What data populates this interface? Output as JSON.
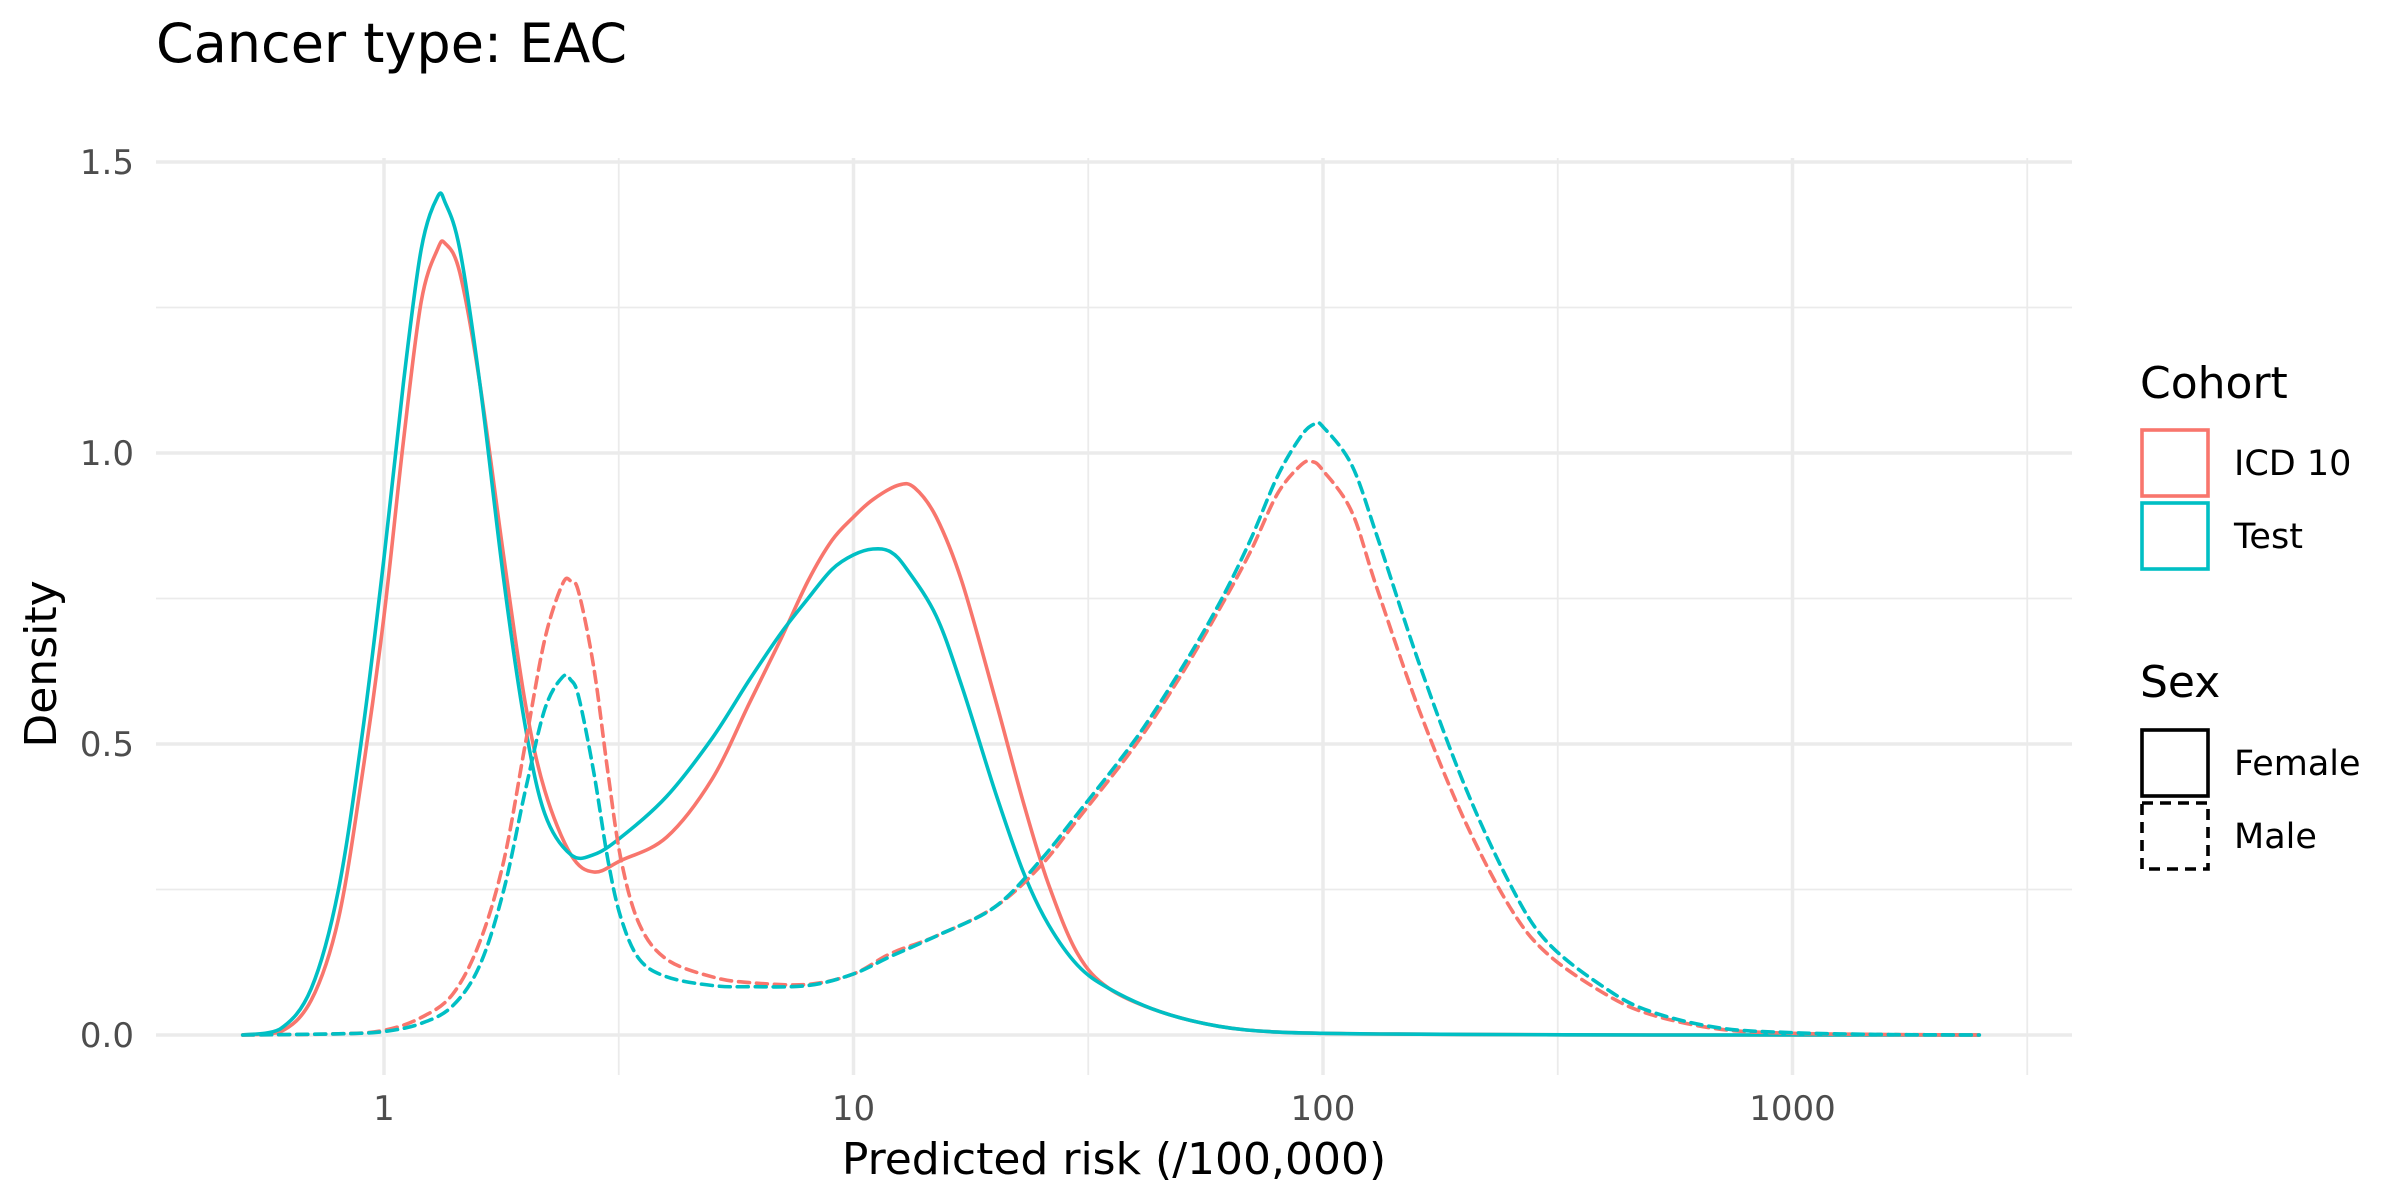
{
  "chart_data": {
    "type": "line",
    "title": "Cancer type: EAC",
    "subtitle": "",
    "xlabel": "Predicted risk (/100,000)",
    "ylabel": "Density",
    "x_scale": "log10",
    "xlim": [
      0.5,
      2500
    ],
    "ylim": [
      0,
      1.5
    ],
    "x_ticks": [
      {
        "value": 1,
        "label": "1"
      },
      {
        "value": 10,
        "label": "10"
      },
      {
        "value": 100,
        "label": "100"
      },
      {
        "value": 1000,
        "label": "1000"
      }
    ],
    "x_minor_ticks": [
      3.162,
      31.62,
      316.2,
      3162
    ],
    "y_ticks": [
      {
        "value": 0,
        "label": "0.0"
      },
      {
        "value": 0.5,
        "label": "0.5"
      },
      {
        "value": 1.0,
        "label": "1.0"
      },
      {
        "value": 1.5,
        "label": "1.5"
      }
    ],
    "y_minor_ticks": [
      0.25,
      0.75,
      1.25
    ],
    "grid": true,
    "legend_position": "right",
    "legends": [
      {
        "title": "Cohort",
        "entries": [
          {
            "label": "ICD 10",
            "color": "#F8766D",
            "dash": "solid"
          },
          {
            "label": "Test",
            "color": "#00BFC4",
            "dash": "solid"
          }
        ]
      },
      {
        "title": "Sex",
        "entries": [
          {
            "label": "Female",
            "color": "#000000",
            "dash": "solid"
          },
          {
            "label": "Male",
            "color": "#000000",
            "dash": "dashed"
          }
        ]
      }
    ],
    "series": [
      {
        "name": "ICD 10 / Female",
        "cohort": "ICD 10",
        "sex": "Female",
        "color": "#F8766D",
        "dash": "solid",
        "points": [
          [
            0.5,
            0
          ],
          [
            0.6,
            0.005
          ],
          [
            0.7,
            0.06
          ],
          [
            0.8,
            0.2
          ],
          [
            0.9,
            0.45
          ],
          [
            1.0,
            0.72
          ],
          [
            1.1,
            1.02
          ],
          [
            1.2,
            1.26
          ],
          [
            1.3,
            1.35
          ],
          [
            1.35,
            1.36
          ],
          [
            1.45,
            1.31
          ],
          [
            1.6,
            1.12
          ],
          [
            1.8,
            0.82
          ],
          [
            2.0,
            0.57
          ],
          [
            2.2,
            0.42
          ],
          [
            2.5,
            0.31
          ],
          [
            2.8,
            0.28
          ],
          [
            3.2,
            0.3
          ],
          [
            4.0,
            0.34
          ],
          [
            5.0,
            0.44
          ],
          [
            6.0,
            0.57
          ],
          [
            7.0,
            0.68
          ],
          [
            8.0,
            0.78
          ],
          [
            9.0,
            0.85
          ],
          [
            10,
            0.89
          ],
          [
            11,
            0.92
          ],
          [
            12.5,
            0.945
          ],
          [
            13.5,
            0.94
          ],
          [
            15,
            0.89
          ],
          [
            17,
            0.78
          ],
          [
            20,
            0.58
          ],
          [
            23,
            0.4
          ],
          [
            26,
            0.26
          ],
          [
            30,
            0.14
          ],
          [
            35,
            0.08
          ],
          [
            45,
            0.04
          ],
          [
            60,
            0.015
          ],
          [
            80,
            0.005
          ],
          [
            120,
            0.002
          ],
          [
            200,
            0.001
          ],
          [
            500,
            0.0
          ],
          [
            1000,
            0.0
          ],
          [
            2500,
            0.0
          ]
        ]
      },
      {
        "name": "Test / Female",
        "cohort": "Test",
        "sex": "Female",
        "color": "#00BFC4",
        "dash": "solid",
        "points": [
          [
            0.5,
            0
          ],
          [
            0.6,
            0.01
          ],
          [
            0.7,
            0.08
          ],
          [
            0.8,
            0.25
          ],
          [
            0.9,
            0.52
          ],
          [
            1.0,
            0.82
          ],
          [
            1.1,
            1.12
          ],
          [
            1.2,
            1.35
          ],
          [
            1.3,
            1.44
          ],
          [
            1.35,
            1.43
          ],
          [
            1.45,
            1.35
          ],
          [
            1.6,
            1.12
          ],
          [
            1.8,
            0.78
          ],
          [
            2.0,
            0.53
          ],
          [
            2.2,
            0.38
          ],
          [
            2.5,
            0.31
          ],
          [
            2.8,
            0.31
          ],
          [
            3.2,
            0.34
          ],
          [
            4.0,
            0.41
          ],
          [
            5.0,
            0.51
          ],
          [
            6.0,
            0.61
          ],
          [
            7.0,
            0.69
          ],
          [
            8.0,
            0.75
          ],
          [
            9.0,
            0.8
          ],
          [
            10,
            0.825
          ],
          [
            11,
            0.835
          ],
          [
            12,
            0.83
          ],
          [
            13,
            0.8
          ],
          [
            15,
            0.72
          ],
          [
            17,
            0.6
          ],
          [
            20,
            0.42
          ],
          [
            23,
            0.28
          ],
          [
            26,
            0.19
          ],
          [
            30,
            0.12
          ],
          [
            35,
            0.08
          ],
          [
            45,
            0.04
          ],
          [
            60,
            0.015
          ],
          [
            80,
            0.005
          ],
          [
            120,
            0.002
          ],
          [
            200,
            0.001
          ],
          [
            500,
            0.0
          ],
          [
            1000,
            0.0
          ],
          [
            2500,
            0.0
          ]
        ]
      },
      {
        "name": "ICD 10 / Male",
        "cohort": "ICD 10",
        "sex": "Male",
        "color": "#F8766D",
        "dash": "dashed",
        "points": [
          [
            0.5,
            0
          ],
          [
            0.8,
            0.002
          ],
          [
            1.0,
            0.008
          ],
          [
            1.2,
            0.03
          ],
          [
            1.4,
            0.07
          ],
          [
            1.6,
            0.16
          ],
          [
            1.8,
            0.3
          ],
          [
            2.0,
            0.5
          ],
          [
            2.2,
            0.68
          ],
          [
            2.4,
            0.775
          ],
          [
            2.5,
            0.78
          ],
          [
            2.6,
            0.76
          ],
          [
            2.8,
            0.63
          ],
          [
            3.0,
            0.45
          ],
          [
            3.2,
            0.3
          ],
          [
            3.5,
            0.19
          ],
          [
            4.0,
            0.13
          ],
          [
            5.0,
            0.1
          ],
          [
            6.0,
            0.09
          ],
          [
            8.0,
            0.087
          ],
          [
            10,
            0.105
          ],
          [
            12,
            0.14
          ],
          [
            15,
            0.17
          ],
          [
            20,
            0.22
          ],
          [
            25,
            0.29
          ],
          [
            30,
            0.37
          ],
          [
            40,
            0.5
          ],
          [
            50,
            0.62
          ],
          [
            60,
            0.73
          ],
          [
            70,
            0.83
          ],
          [
            80,
            0.93
          ],
          [
            90,
            0.98
          ],
          [
            95,
            0.985
          ],
          [
            100,
            0.97
          ],
          [
            115,
            0.9
          ],
          [
            130,
            0.77
          ],
          [
            160,
            0.56
          ],
          [
            200,
            0.37
          ],
          [
            250,
            0.22
          ],
          [
            300,
            0.14
          ],
          [
            400,
            0.07
          ],
          [
            500,
            0.035
          ],
          [
            700,
            0.01
          ],
          [
            1000,
            0.003
          ],
          [
            1500,
            0.001
          ],
          [
            2500,
            0.0
          ]
        ]
      },
      {
        "name": "Test / Male",
        "cohort": "Test",
        "sex": "Male",
        "color": "#00BFC4",
        "dash": "dashed",
        "points": [
          [
            0.5,
            0
          ],
          [
            0.8,
            0.002
          ],
          [
            1.0,
            0.006
          ],
          [
            1.2,
            0.02
          ],
          [
            1.4,
            0.05
          ],
          [
            1.6,
            0.12
          ],
          [
            1.8,
            0.25
          ],
          [
            2.0,
            0.42
          ],
          [
            2.2,
            0.56
          ],
          [
            2.4,
            0.615
          ],
          [
            2.5,
            0.61
          ],
          [
            2.6,
            0.58
          ],
          [
            2.8,
            0.45
          ],
          [
            3.0,
            0.3
          ],
          [
            3.2,
            0.2
          ],
          [
            3.5,
            0.13
          ],
          [
            4.0,
            0.1
          ],
          [
            5.0,
            0.085
          ],
          [
            6.0,
            0.083
          ],
          [
            8.0,
            0.085
          ],
          [
            10,
            0.105
          ],
          [
            12,
            0.135
          ],
          [
            15,
            0.17
          ],
          [
            20,
            0.22
          ],
          [
            25,
            0.3
          ],
          [
            30,
            0.38
          ],
          [
            40,
            0.51
          ],
          [
            50,
            0.63
          ],
          [
            60,
            0.74
          ],
          [
            70,
            0.85
          ],
          [
            80,
            0.96
          ],
          [
            90,
            1.03
          ],
          [
            96,
            1.05
          ],
          [
            100,
            1.045
          ],
          [
            115,
            0.98
          ],
          [
            130,
            0.86
          ],
          [
            160,
            0.64
          ],
          [
            200,
            0.43
          ],
          [
            250,
            0.26
          ],
          [
            300,
            0.16
          ],
          [
            400,
            0.08
          ],
          [
            500,
            0.04
          ],
          [
            700,
            0.012
          ],
          [
            1000,
            0.004
          ],
          [
            1500,
            0.001
          ],
          [
            2500,
            0.0
          ]
        ]
      }
    ]
  }
}
